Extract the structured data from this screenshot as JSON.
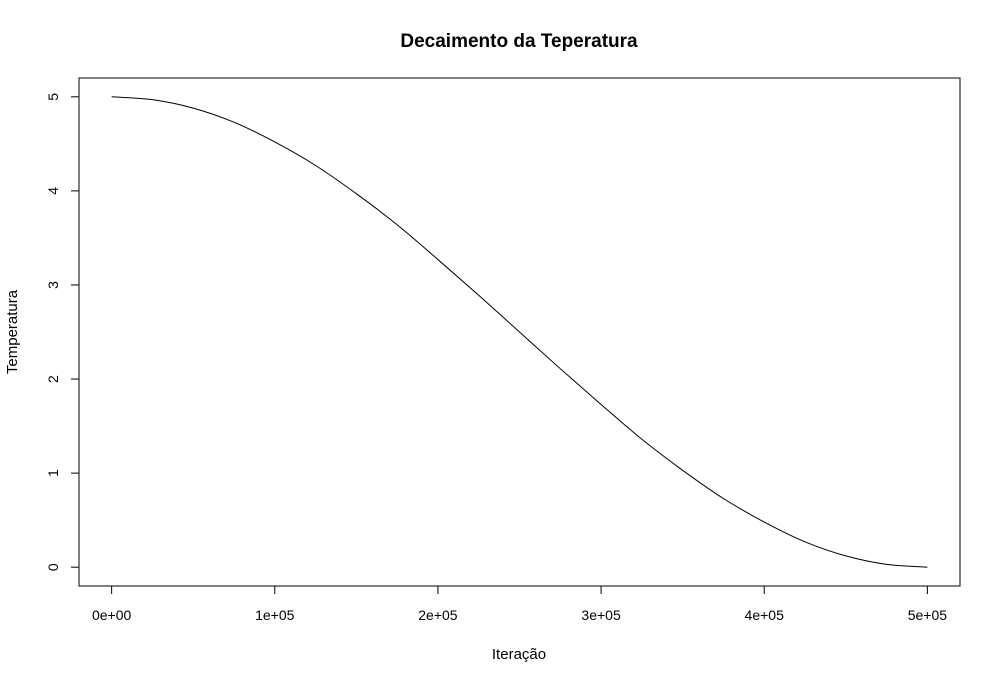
{
  "chart_data": {
    "type": "line",
    "title": "Decaimento da Teperatura",
    "xlabel": "Iteração",
    "ylabel": "Temperatura",
    "xlim": [
      -20000,
      520000
    ],
    "ylim": [
      -0.2,
      5.2
    ],
    "x_ticks": [
      0,
      100000,
      200000,
      300000,
      400000,
      500000
    ],
    "x_tick_labels": [
      "0e+00",
      "1e+05",
      "2e+05",
      "3e+05",
      "4e+05",
      "5e+05"
    ],
    "y_ticks": [
      0,
      1,
      2,
      3,
      4,
      5
    ],
    "y_tick_labels": [
      "0",
      "1",
      "2",
      "3",
      "4",
      "5"
    ],
    "grid": false,
    "legend": "none",
    "line_color": "#000000",
    "series": [
      {
        "x": [
          0,
          25000,
          50000,
          75000,
          100000,
          125000,
          150000,
          175000,
          200000,
          225000,
          250000,
          275000,
          300000,
          325000,
          350000,
          375000,
          400000,
          425000,
          450000,
          475000,
          500000
        ],
        "values": [
          5.0,
          4.97,
          4.88,
          4.73,
          4.52,
          4.27,
          3.97,
          3.64,
          3.27,
          2.89,
          2.5,
          2.11,
          1.73,
          1.36,
          1.03,
          0.73,
          0.48,
          0.27,
          0.12,
          0.03,
          0.0
        ]
      }
    ]
  }
}
